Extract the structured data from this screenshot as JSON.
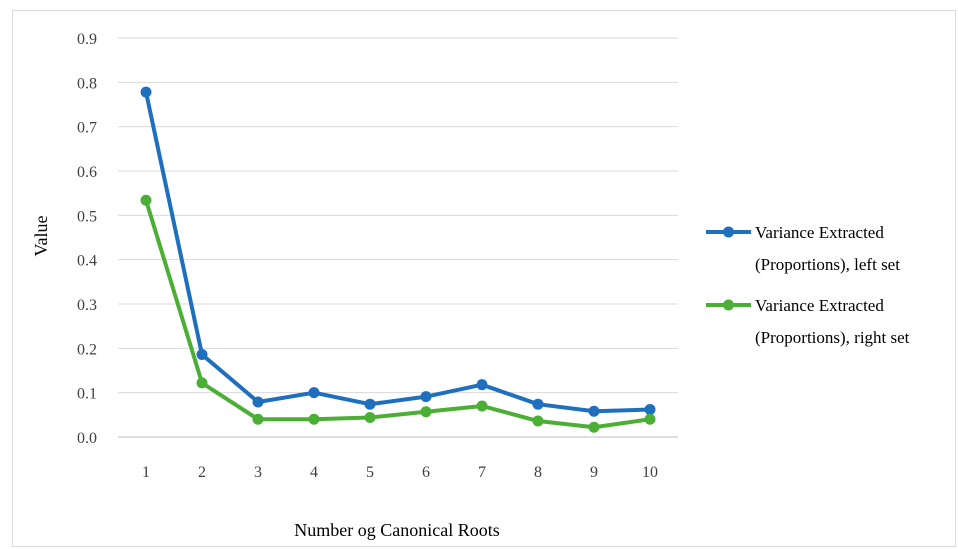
{
  "chart_data": {
    "type": "line",
    "title": "",
    "xlabel": "Number og Canonical Roots",
    "ylabel": "Value",
    "categories": [
      "1",
      "2",
      "3",
      "4",
      "5",
      "6",
      "7",
      "8",
      "9",
      "10"
    ],
    "ylim": [
      0,
      0.9
    ],
    "yticks": [
      "0.0",
      "0.1",
      "0.2",
      "0.3",
      "0.4",
      "0.5",
      "0.6",
      "0.7",
      "0.8",
      "0.9"
    ],
    "grid": true,
    "legend_position": "right",
    "series": [
      {
        "name_line1": "Variance Extracted",
        "name_line2": "(Proportions), left set",
        "color": "#1f6fbf",
        "values": [
          0.778,
          0.186,
          0.079,
          0.1,
          0.074,
          0.091,
          0.118,
          0.074,
          0.058,
          0.062
        ]
      },
      {
        "name_line1": "Variance Extracted",
        "name_line2": "(Proportions), right set",
        "color": "#4caf35",
        "values": [
          0.534,
          0.122,
          0.04,
          0.04,
          0.044,
          0.057,
          0.07,
          0.036,
          0.022,
          0.04
        ]
      }
    ]
  }
}
